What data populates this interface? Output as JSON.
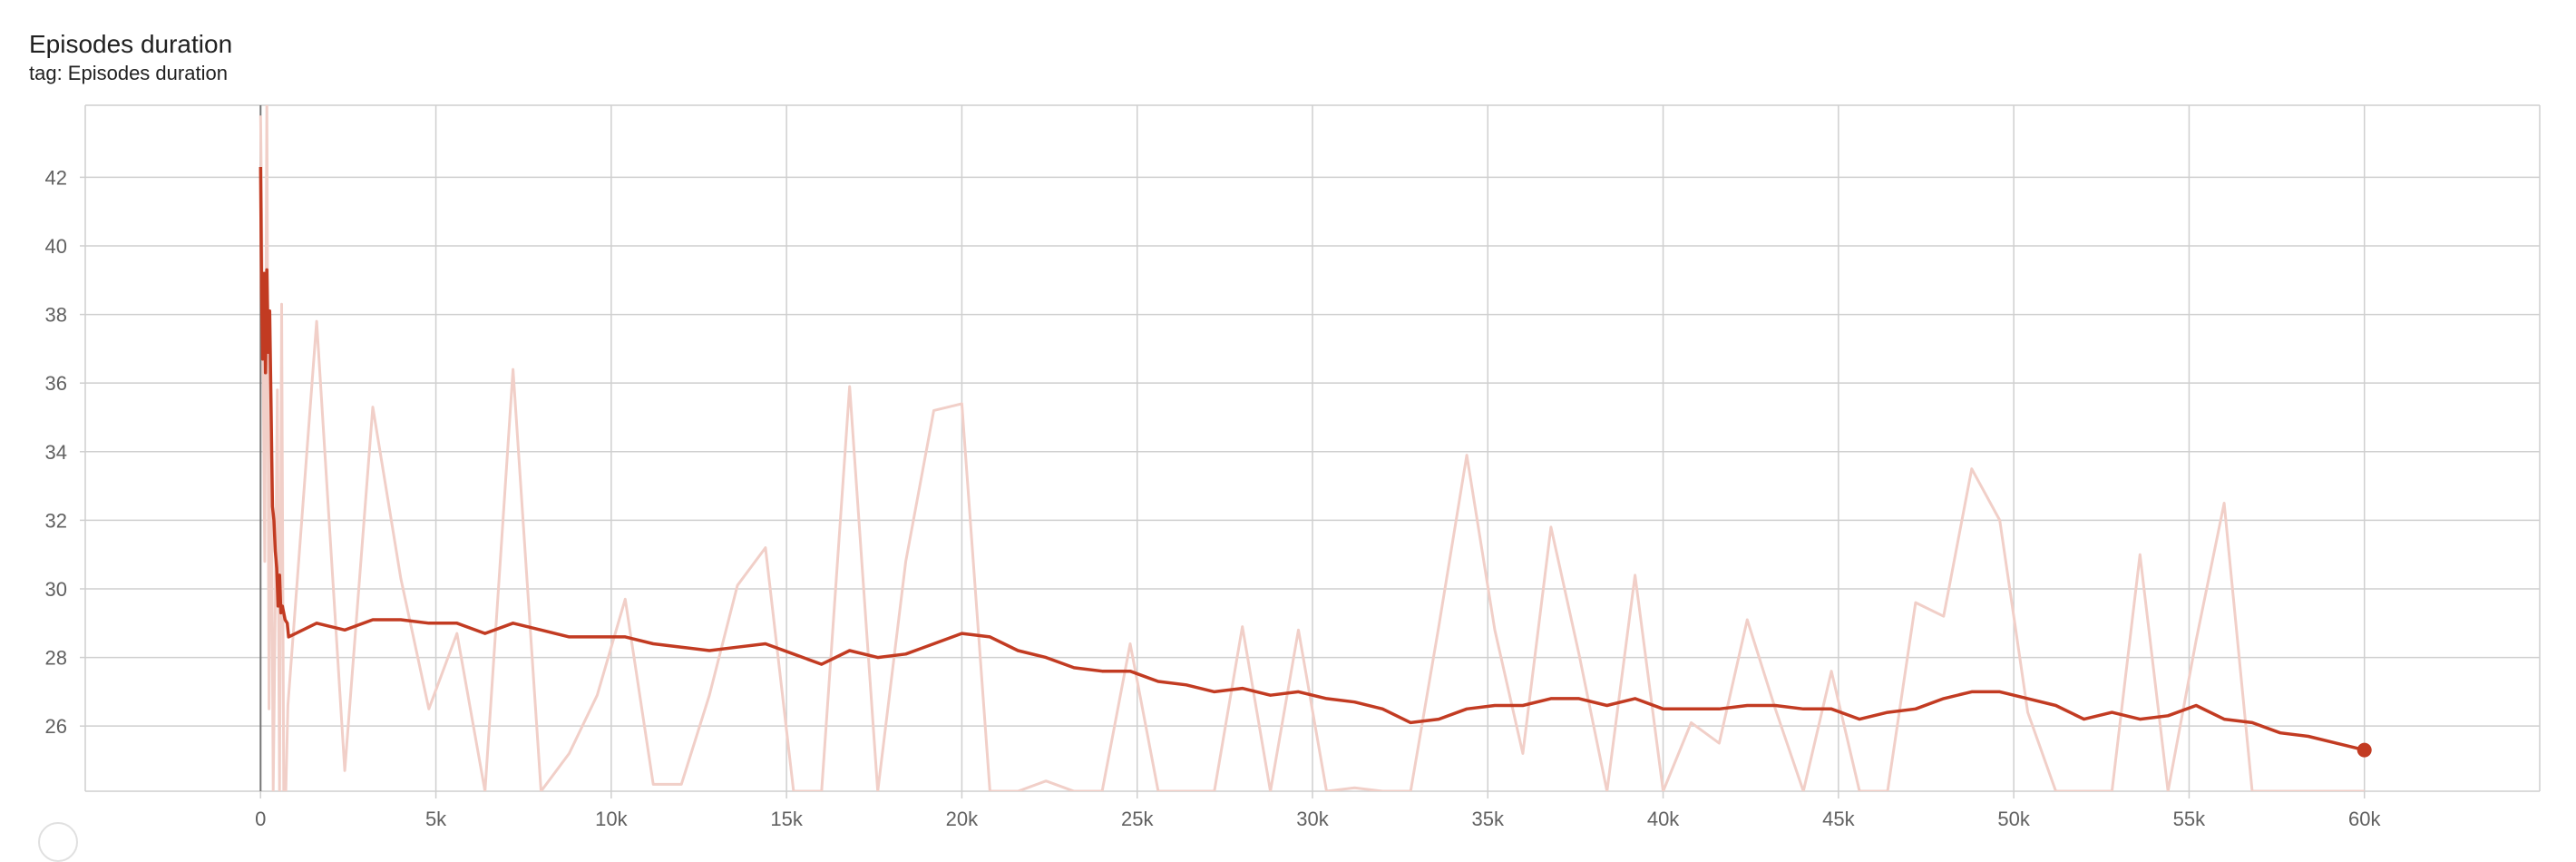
{
  "card": {
    "title": "Episodes duration",
    "subtitle": "tag: Episodes duration"
  },
  "chart_data": {
    "type": "line",
    "title": "Episodes duration",
    "subtitle": "tag: Episodes duration",
    "xlabel": "",
    "ylabel": "",
    "xlim": [
      -5000,
      65000
    ],
    "ylim": [
      24.1,
      44.1
    ],
    "x_ticks": [
      0,
      5000,
      10000,
      15000,
      20000,
      25000,
      30000,
      35000,
      40000,
      45000,
      50000,
      55000,
      60000
    ],
    "x_tick_labels": [
      "0",
      "5k",
      "10k",
      "15k",
      "20k",
      "25k",
      "30k",
      "35k",
      "40k",
      "45k",
      "50k",
      "55k",
      "60k"
    ],
    "y_ticks": [
      26,
      28,
      30,
      32,
      34,
      36,
      38,
      40,
      42
    ],
    "y_tick_labels": [
      "26",
      "28",
      "30",
      "32",
      "34",
      "36",
      "38",
      "40",
      "42"
    ],
    "grid": true,
    "colors": {
      "smoothed": "#c23b22",
      "raw": "#f1cfc8",
      "grid": "#cfcfcf",
      "zero_line": "#757575"
    },
    "series": [
      {
        "role": "raw",
        "x": [
          0,
          60,
          120,
          180,
          240,
          300,
          360,
          420,
          480,
          540,
          600,
          660,
          720,
          780,
          1600,
          2400,
          3200,
          4000,
          4800,
          5600,
          6400,
          7200,
          8000,
          8800,
          9600,
          10400,
          11200,
          12000,
          12800,
          13600,
          14400,
          15200,
          16000,
          16800,
          17600,
          18400,
          19200,
          20000,
          20800,
          21600,
          22400,
          23200,
          24000,
          24800,
          25600,
          26400,
          27200,
          28000,
          28800,
          29600,
          30400,
          31200,
          32000,
          32800,
          33600,
          34400,
          35200,
          36000,
          36800,
          37600,
          38400,
          39200,
          40000,
          40800,
          41600,
          42400,
          43200,
          44000,
          44800,
          45600,
          46400,
          47200,
          48000,
          48800,
          49600,
          50400,
          51200,
          52000,
          52800,
          53600,
          54400,
          55200,
          56000,
          56800,
          57600,
          58400,
          59200,
          60000
        ],
        "y": [
          43.8,
          38.2,
          30.8,
          44.2,
          26.5,
          35.2,
          24.1,
          29.5,
          35.8,
          24.1,
          38.3,
          24.1,
          24.1,
          26.6,
          37.8,
          24.7,
          35.3,
          30.3,
          26.5,
          28.7,
          24.1,
          36.4,
          24.1,
          25.2,
          26.9,
          29.7,
          24.3,
          24.3,
          26.9,
          30.1,
          31.2,
          24.1,
          24.1,
          35.9,
          24.1,
          30.8,
          35.2,
          35.4,
          24.1,
          24.1,
          24.4,
          24.1,
          24.1,
          28.4,
          24.1,
          24.1,
          24.1,
          28.9,
          24.1,
          28.8,
          24.1,
          24.2,
          24.1,
          24.1,
          28.9,
          33.9,
          28.8,
          25.2,
          31.8,
          28.1,
          24.1,
          30.4,
          24.1,
          26.1,
          25.5,
          29.1,
          26.5,
          24.1,
          27.6,
          24.1,
          24.1,
          29.6,
          29.2,
          33.5,
          32.0,
          26.4,
          24.1,
          24.1,
          24.1,
          31.0,
          24.1,
          28.5,
          32.5,
          24.1,
          24.1,
          24.1,
          24.1,
          24.1
        ]
      },
      {
        "role": "smoothed",
        "x": [
          0,
          30,
          60,
          100,
          140,
          180,
          220,
          260,
          300,
          340,
          380,
          420,
          460,
          500,
          540,
          580,
          620,
          660,
          700,
          760,
          800,
          1600,
          2400,
          3200,
          4000,
          4800,
          5600,
          6400,
          7200,
          8000,
          8800,
          9600,
          10400,
          11200,
          12000,
          12800,
          13600,
          14400,
          15200,
          16000,
          16800,
          17600,
          18400,
          19200,
          20000,
          20800,
          21600,
          22400,
          23200,
          24000,
          24800,
          25600,
          26400,
          27200,
          28000,
          28800,
          29600,
          30400,
          31200,
          32000,
          32800,
          33600,
          34400,
          35200,
          36000,
          36800,
          37600,
          38400,
          39200,
          40000,
          40800,
          41600,
          42400,
          43200,
          44000,
          44800,
          45600,
          46400,
          47200,
          48000,
          48800,
          49600,
          50400,
          51200,
          52000,
          52800,
          53600,
          54400,
          55200,
          56000,
          56800,
          57600,
          58400,
          59200,
          60000
        ],
        "y": [
          42.3,
          38.7,
          36.7,
          39.2,
          36.3,
          39.3,
          36.9,
          38.1,
          35.2,
          32.4,
          32.0,
          31.1,
          30.6,
          29.5,
          30.4,
          29.3,
          29.5,
          29.3,
          29.1,
          29.0,
          28.6,
          29.0,
          28.8,
          29.1,
          29.1,
          29.0,
          29.0,
          28.7,
          29.0,
          28.8,
          28.6,
          28.6,
          28.6,
          28.4,
          28.3,
          28.2,
          28.3,
          28.4,
          28.1,
          27.8,
          28.2,
          28.0,
          28.1,
          28.4,
          28.7,
          28.6,
          28.2,
          28.0,
          27.7,
          27.6,
          27.6,
          27.3,
          27.2,
          27.0,
          27.1,
          26.9,
          27.0,
          26.8,
          26.7,
          26.5,
          26.1,
          26.2,
          26.5,
          26.6,
          26.6,
          26.8,
          26.8,
          26.6,
          26.8,
          26.5,
          26.5,
          26.5,
          26.6,
          26.6,
          26.5,
          26.5,
          26.2,
          26.4,
          26.5,
          26.8,
          27.0,
          27.0,
          26.8,
          26.6,
          26.2,
          26.4,
          26.2,
          26.3,
          26.6,
          26.2,
          26.1,
          25.8,
          25.7,
          25.5,
          25.3
        ]
      }
    ]
  }
}
